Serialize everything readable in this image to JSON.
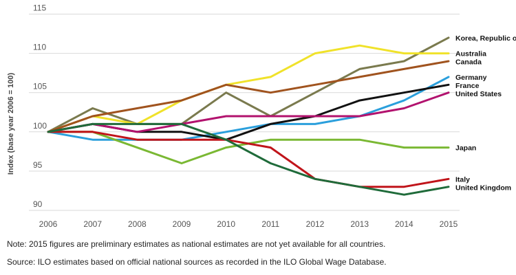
{
  "chart_data": {
    "type": "line",
    "x": [
      2006,
      2007,
      2008,
      2009,
      2010,
      2011,
      2012,
      2013,
      2014,
      2015
    ],
    "ylabel": "Index (base year 2006 = 100)",
    "ylim": [
      90,
      115
    ],
    "yticks": [
      90,
      95,
      100,
      105,
      110,
      115
    ],
    "grid": true,
    "legend": "direct labels at line ends (right)",
    "series": [
      {
        "name": "Korea, Republic of",
        "color": "#7a7a4e",
        "values": [
          100,
          103,
          101,
          101,
          105,
          102,
          105,
          108,
          109,
          112
        ]
      },
      {
        "name": "Australia",
        "color": "#f0e22a",
        "values": [
          100,
          102,
          101,
          104,
          106,
          107,
          110,
          111,
          110,
          110
        ]
      },
      {
        "name": "Canada",
        "color": "#a0531e",
        "values": [
          100,
          102,
          103,
          104,
          106,
          105,
          106,
          107,
          108,
          109
        ]
      },
      {
        "name": "Germany",
        "color": "#2a9fdc",
        "values": [
          100,
          99,
          99,
          99,
          100,
          101,
          101,
          102,
          104,
          107
        ]
      },
      {
        "name": "France",
        "color": "#111111",
        "values": [
          100,
          101,
          100,
          100,
          99,
          101,
          102,
          104,
          105,
          106
        ]
      },
      {
        "name": "United States",
        "color": "#b2126e",
        "values": [
          100,
          101,
          100,
          101,
          102,
          102,
          102,
          102,
          103,
          105
        ]
      },
      {
        "name": "Japan",
        "color": "#7ab833",
        "values": [
          100,
          100,
          98,
          96,
          98,
          99,
          99,
          99,
          98,
          98
        ]
      },
      {
        "name": "Italy",
        "color": "#c0141a",
        "values": [
          100,
          100,
          99,
          99,
          99,
          98,
          94,
          93,
          93,
          94
        ]
      },
      {
        "name": "United Kingdom",
        "color": "#1f6b3a",
        "values": [
          100,
          101,
          101,
          101,
          99,
          96,
          94,
          93,
          92,
          93
        ]
      }
    ]
  },
  "notes": {
    "note": "Note: 2015 figures are preliminary estimates as national estimates are not yet available for all countries.",
    "source": "Source: ILO estimates based on official national sources as recorded in the ILO Global Wage Database."
  }
}
